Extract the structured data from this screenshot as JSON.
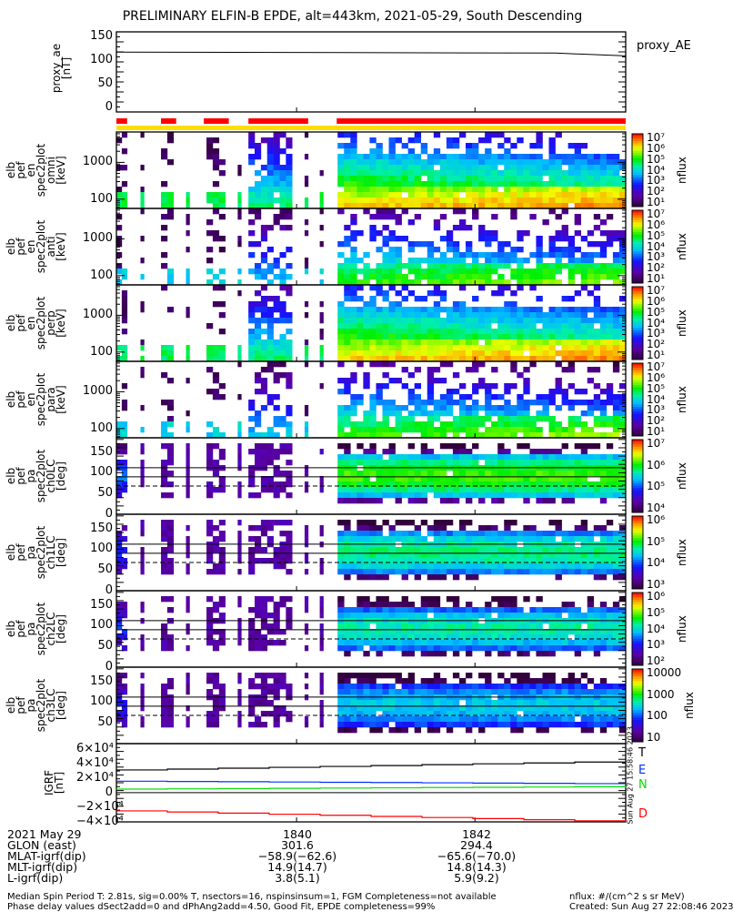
{
  "title": "PRELIMINARY ELFIN-B EPDE, alt=443km, 2021-05-29, South Descending",
  "proxy_ae": {
    "ylabel": [
      "proxy_ae",
      "[nT]"
    ],
    "yticks": [
      "150",
      "100",
      "50",
      "0"
    ],
    "ylim": [
      -10,
      160
    ],
    "legend": "proxy_AE",
    "series": {
      "t": [
        37.98,
        42.9,
        43.69
      ],
      "v": [
        117,
        115,
        109
      ]
    }
  },
  "bars": {
    "science_zones": [
      [
        37.98,
        38.1
      ],
      [
        38.48,
        38.65
      ],
      [
        38.96,
        39.24
      ],
      [
        39.46,
        40.13
      ],
      [
        40.45,
        43.69
      ]
    ],
    "science_color": "#ff0000",
    "attitude_color": "#ffdd00"
  },
  "segments": [
    [
      37.98,
      38.1,
      1.0
    ],
    [
      38.25,
      38.29,
      0.6
    ],
    [
      38.48,
      38.62,
      0.9
    ],
    [
      38.76,
      38.8,
      0.6
    ],
    [
      38.99,
      39.2,
      0.9
    ],
    [
      39.34,
      39.38,
      0.5
    ],
    [
      39.46,
      39.95,
      0.75
    ],
    [
      40.09,
      40.13,
      0.5
    ],
    [
      40.26,
      40.3,
      0.6
    ],
    [
      40.46,
      43.69,
      1.0
    ]
  ],
  "spectrograms": [
    {
      "kind": "energy",
      "strength": 1.0,
      "label": [
        "elb",
        "pef",
        "en",
        "spec2plot",
        "omni",
        "[keV]"
      ],
      "yticks": [
        "1000",
        "100"
      ],
      "cbticks": [
        "10⁷",
        "10⁶",
        "10⁵",
        "10⁴",
        "10³",
        "10²",
        "10¹"
      ],
      "cblabel": "nflux"
    },
    {
      "kind": "energy",
      "strength": 0.7,
      "label": [
        "elb",
        "pef",
        "en",
        "spec2plot",
        "anti",
        "[keV]"
      ],
      "yticks": [
        "1000",
        "100"
      ],
      "cbticks": [
        "10⁷",
        "10⁶",
        "10⁵",
        "10⁴",
        "10³",
        "10²",
        "10¹"
      ],
      "cblabel": "nflux"
    },
    {
      "kind": "energy",
      "strength": 1.0,
      "label": [
        "elb",
        "pef",
        "en",
        "spec2plot",
        "perp",
        "[keV]"
      ],
      "yticks": [
        "1000",
        "100"
      ],
      "cbticks": [
        "10⁷",
        "10⁶",
        "10⁵",
        "10⁴",
        "10³",
        "10²",
        "10¹"
      ],
      "cblabel": "nflux"
    },
    {
      "kind": "energy",
      "strength": 0.7,
      "label": [
        "elb",
        "pef",
        "en",
        "spec2plot",
        "para",
        "[keV]"
      ],
      "yticks": [
        "1000",
        "100"
      ],
      "cbticks": [
        "10⁷",
        "10⁶",
        "10⁵",
        "10⁴",
        "10³",
        "10²",
        "10¹"
      ],
      "cblabel": "nflux"
    },
    {
      "kind": "pa",
      "strength": 1.0,
      "label": [
        "elb",
        "pef",
        "pa",
        "spec2plot",
        "ch0LC",
        "[deg]"
      ],
      "yticks": [
        "150",
        "100",
        "50",
        "0"
      ],
      "cbticks": [
        "10⁷",
        "10⁶",
        "10⁵",
        "10⁴"
      ],
      "cblabel": "nflux"
    },
    {
      "kind": "pa",
      "strength": 0.85,
      "label": [
        "elb",
        "pef",
        "pa",
        "spec2plot",
        "ch1LC",
        "[deg]"
      ],
      "yticks": [
        "150",
        "100",
        "50",
        "0"
      ],
      "cbticks": [
        "10⁶",
        "10⁵",
        "10⁴",
        "10³"
      ],
      "cblabel": "nflux"
    },
    {
      "kind": "pa",
      "strength": 0.8,
      "label": [
        "elb",
        "pef",
        "pa",
        "spec2plot",
        "ch2LC",
        "[deg]"
      ],
      "yticks": [
        "150",
        "100",
        "50",
        "0"
      ],
      "cbticks": [
        "10⁶",
        "10⁵",
        "10⁴",
        "10³",
        "10²"
      ],
      "cblabel": "nflux"
    },
    {
      "kind": "pa",
      "strength": 0.7,
      "label": [
        "elb",
        "pef",
        "pa",
        "spec2plot",
        "ch3LC",
        "[deg]"
      ],
      "yticks": [
        "150",
        "100",
        "50"
      ],
      "cbticks": [
        "10000",
        "1000",
        "100",
        "10"
      ],
      "cblabel": "nflux"
    }
  ],
  "igrf": {
    "ylabel": [
      "IGRF",
      "[nT]"
    ],
    "yticks": [
      "6×10⁴",
      "4×10⁴",
      "2×10⁴",
      "0",
      "−2×10⁴",
      "−4×10⁴"
    ],
    "ylim": [
      -40000,
      67000
    ],
    "series": [
      {
        "name": "T",
        "color": "#000000",
        "v": [
          31000,
          43000
        ]
      },
      {
        "name": "E",
        "color": "#0030ff",
        "v": [
          15600,
          12000
        ]
      },
      {
        "name": "N",
        "color": "#00e000",
        "v": [
          4800,
          8400
        ]
      },
      {
        "name": "D",
        "color": "#ff0000",
        "v": [
          -25000,
          -40000
        ]
      }
    ],
    "stamp": "Sun Aug 27 15:58:46 2023"
  },
  "chart_data": {
    "type": "heatmap",
    "title": "PRELIMINARY ELFIN-B EPDE, alt=443km, 2021-05-29, South Descending",
    "xlim_minutes_after_1800": [
      37.98,
      43.69
    ],
    "energy_ylim_keV": [
      56,
      6700
    ],
    "pa_ylim_deg": [
      0,
      184
    ],
    "pa_reference_lines_deg": [
      112,
      90,
      68
    ]
  },
  "xaxis": {
    "row_labels": [
      "2021 May 29",
      "GLON (east)",
      "MLAT-igrf(dip)",
      "MLT-igrf(dip)",
      "L-igrf(dip)"
    ],
    "columns": [
      {
        "t": 40,
        "values": [
          "1840",
          "301.6",
          "−58.9(−62.6)",
          "14.9(14.7)",
          "3.8(5.1)"
        ]
      },
      {
        "t": 42,
        "values": [
          "1842",
          "294.4",
          "−65.6(−70.0)",
          "14.8(14.3)",
          "5.9(9.2)"
        ]
      }
    ]
  },
  "footer": {
    "line1": "Median Spin Period T: 2.81s, sig=0.00% T, nsectors=16, nspinsinsum=1, FGM Completeness=not available",
    "line2": "Phase delay values dSect2add=0 and dPhAng2add=4.50, Good Fit, EPDE completeness=99%",
    "units": "nflux: #/(cm^2 s sr MeV)",
    "created": "Created: Sun Aug 27 22:08:46 2023"
  }
}
